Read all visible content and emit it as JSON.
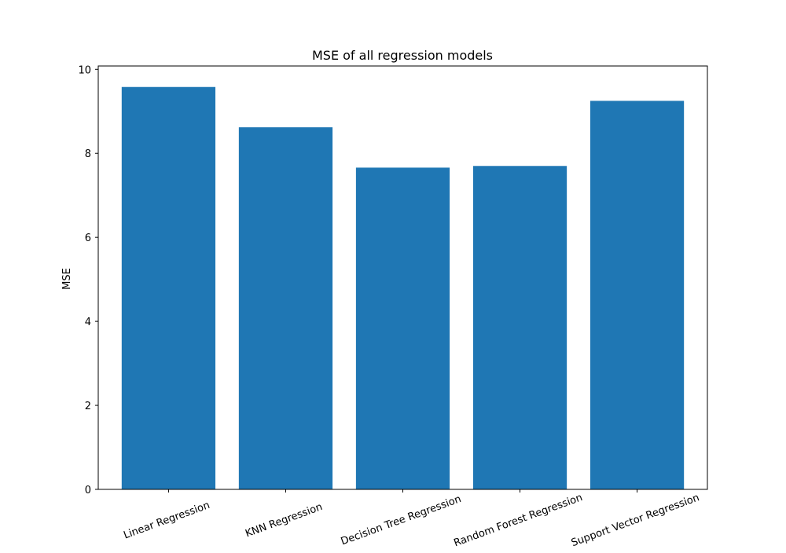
{
  "chart_data": {
    "type": "bar",
    "title": "MSE of all regression models",
    "xlabel": "",
    "ylabel": "MSE",
    "categories": [
      "Linear Regression",
      "KNN Regression",
      "Decision Tree Regression",
      "Random Forest Regression",
      "Support Vector Regression"
    ],
    "values": [
      9.58,
      8.62,
      7.66,
      7.7,
      9.25
    ],
    "ylim": [
      0,
      10.08
    ],
    "yticks": [
      0,
      2,
      4,
      6,
      8,
      10
    ],
    "bar_color": "#1f77b4",
    "grid": false,
    "legend": "none"
  }
}
